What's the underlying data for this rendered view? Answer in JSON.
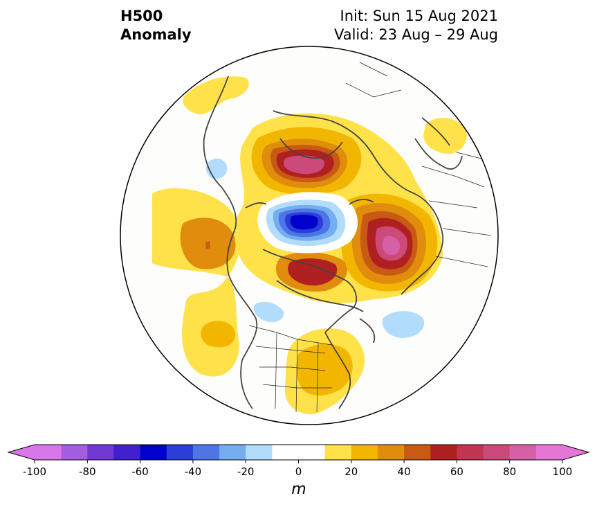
{
  "header": {
    "title_line1": "H500",
    "title_line2": "Anomaly",
    "init_text": "Init: Sun 15 Aug 2021",
    "valid_text": "Valid: 23 Aug – 29 Aug"
  },
  "colorbar": {
    "unit": "m",
    "tick_labels": [
      "-100",
      "-80",
      "-60",
      "-40",
      "-20",
      "0",
      "20",
      "40",
      "60",
      "80",
      "100"
    ],
    "colors": [
      "#d877e8",
      "#a35ee0",
      "#7039d6",
      "#4020d0",
      "#0000cc",
      "#2a3fd8",
      "#4d75e6",
      "#74adf0",
      "#b2dcfb",
      "#ffffff",
      "#ffffff",
      "#ffe24a",
      "#f2b600",
      "#e08c0c",
      "#c85a14",
      "#b12020",
      "#c23450",
      "#cc4a7a",
      "#d660a8",
      "#e676d6"
    ],
    "min": -100,
    "max": 100,
    "extend": "both"
  },
  "map": {
    "projection": "north polar stereographic",
    "anomaly_features": [
      {
        "type": "positive",
        "region": "northern Europe / Scandinavia",
        "peak_m": 65
      },
      {
        "type": "positive",
        "region": "eastern Siberia / Yakutia",
        "peak_m": 75
      },
      {
        "type": "positive",
        "region": "central Canada / Hudson Bay",
        "peak_m": 60
      },
      {
        "type": "positive",
        "region": "eastern United States",
        "peak_m": 25
      },
      {
        "type": "positive",
        "region": "North Atlantic",
        "peak_m": 45
      },
      {
        "type": "positive",
        "region": "North Pacific",
        "peak_m": 35
      },
      {
        "type": "negative",
        "region": "central Arctic Ocean",
        "peak_m": -60
      },
      {
        "type": "negative",
        "region": "northwest Pacific coast",
        "peak_m": -15
      },
      {
        "type": "negative",
        "region": "Alaska Gulf / Bering",
        "peak_m": -15
      }
    ],
    "colors": {
      "coastline": "#444444",
      "borders": "#222222",
      "outline": "#000000",
      "background": "#fdfdfb"
    }
  }
}
